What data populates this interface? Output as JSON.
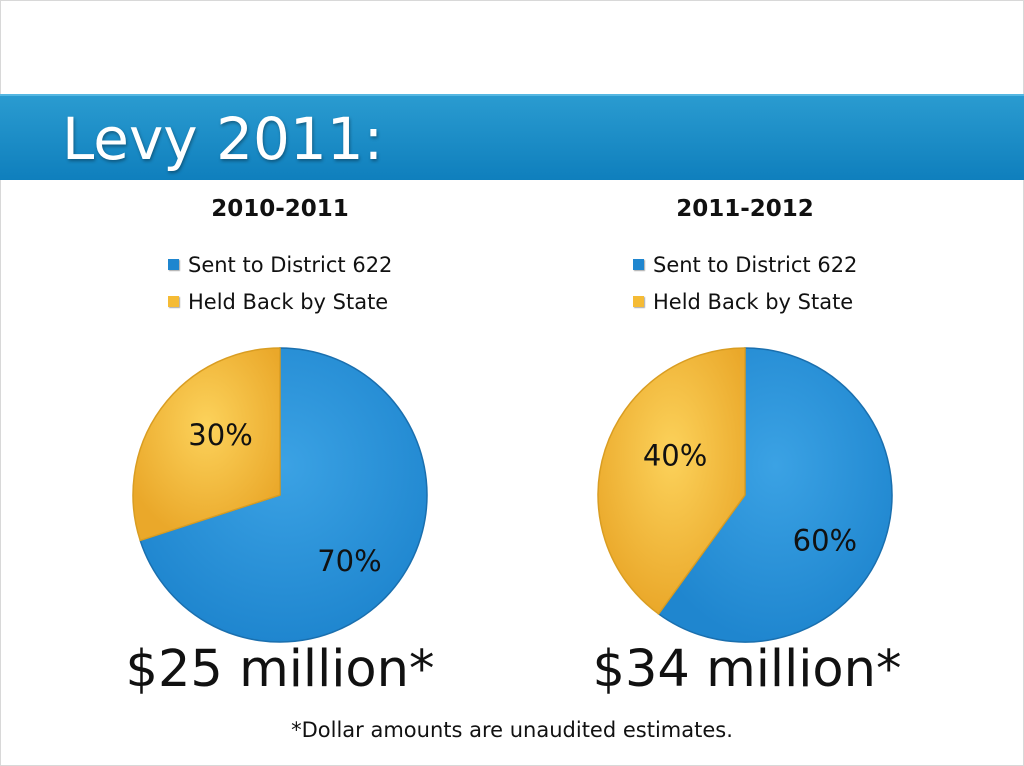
{
  "slide": {
    "title": "Levy 2011:",
    "footnote": "*Dollar amounts are unaudited estimates."
  },
  "colors": {
    "title_bar": "#1488c6",
    "sent": "#1f86cf",
    "held": "#f5bb35"
  },
  "chart_data": [
    {
      "type": "pie",
      "title": "2010-2011",
      "legend": [
        "Sent to District 622",
        "Held Back by State"
      ],
      "slices": [
        {
          "name": "Sent to District 622",
          "value": 70,
          "label": "70%"
        },
        {
          "name": "Held Back by State",
          "value": 30,
          "label": "30%"
        }
      ],
      "total_label": "$25 million*",
      "legend_placement": "top"
    },
    {
      "type": "pie",
      "title": "2011-2012",
      "legend": [
        "Sent to District 622",
        "Held Back by State"
      ],
      "slices": [
        {
          "name": "Sent to District 622",
          "value": 60,
          "label": "60%"
        },
        {
          "name": "Held Back by State",
          "value": 40,
          "label": "40%"
        }
      ],
      "total_label": "$34 million*",
      "legend_placement": "top"
    }
  ]
}
